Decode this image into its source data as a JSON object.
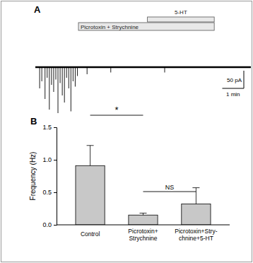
{
  "chart_data": [
    {
      "type": "trace",
      "title": "A",
      "x": [
        0.2,
        0.3,
        0.45,
        0.55,
        0.65,
        0.75,
        0.85,
        0.95,
        1.05,
        1.15,
        1.25,
        1.35,
        1.45,
        1.55,
        1.65,
        1.75,
        1.85,
        1.95,
        2.4,
        3.5,
        6.0
      ],
      "values": [
        -60,
        -40,
        -90,
        -30,
        -120,
        -50,
        -70,
        -35,
        -130,
        -45,
        -80,
        -100,
        -30,
        -60,
        -125,
        -40,
        -55,
        -25,
        -20,
        -15,
        -15
      ],
      "xlim": [
        0,
        10
      ],
      "ylim": [
        -140,
        20
      ],
      "tick_labels": false,
      "color": "#000000",
      "annotations": [
        {
          "text": "5-HT",
          "start": 5.2,
          "end": 8.3
        },
        {
          "text": "Picrotoxin + Strychnine",
          "start": 2.0,
          "end": 8.3
        }
      ],
      "scale_bars": {
        "x": {
          "value": 1,
          "label": "1 min"
        },
        "y": {
          "value": 50,
          "label": "50 pA"
        }
      }
    },
    {
      "type": "bar",
      "title": "B",
      "categories": [
        "Control",
        "Picrotoxin+\nStrychnine",
        "Picrotoxin+Stry-\nchnine+5-HT"
      ],
      "values": [
        0.91,
        0.15,
        0.32
      ],
      "errors": [
        0.31,
        0.03,
        0.25
      ],
      "color": "#c8c8c8",
      "ylabel": "Frequency (Hz)",
      "ylim": [
        0,
        1.5
      ],
      "yticks": [
        {
          "value": 0,
          "label": "0.0"
        },
        {
          "value": 0.5,
          "label": "0.5"
        },
        {
          "value": 1,
          "label": "1.0"
        },
        {
          "value": 1.5,
          "label": "1.5"
        }
      ],
      "annotations": [
        {
          "text": "*",
          "from": 0,
          "to": 1
        },
        {
          "text": "NS",
          "from": 1,
          "to": 2
        }
      ]
    }
  ]
}
